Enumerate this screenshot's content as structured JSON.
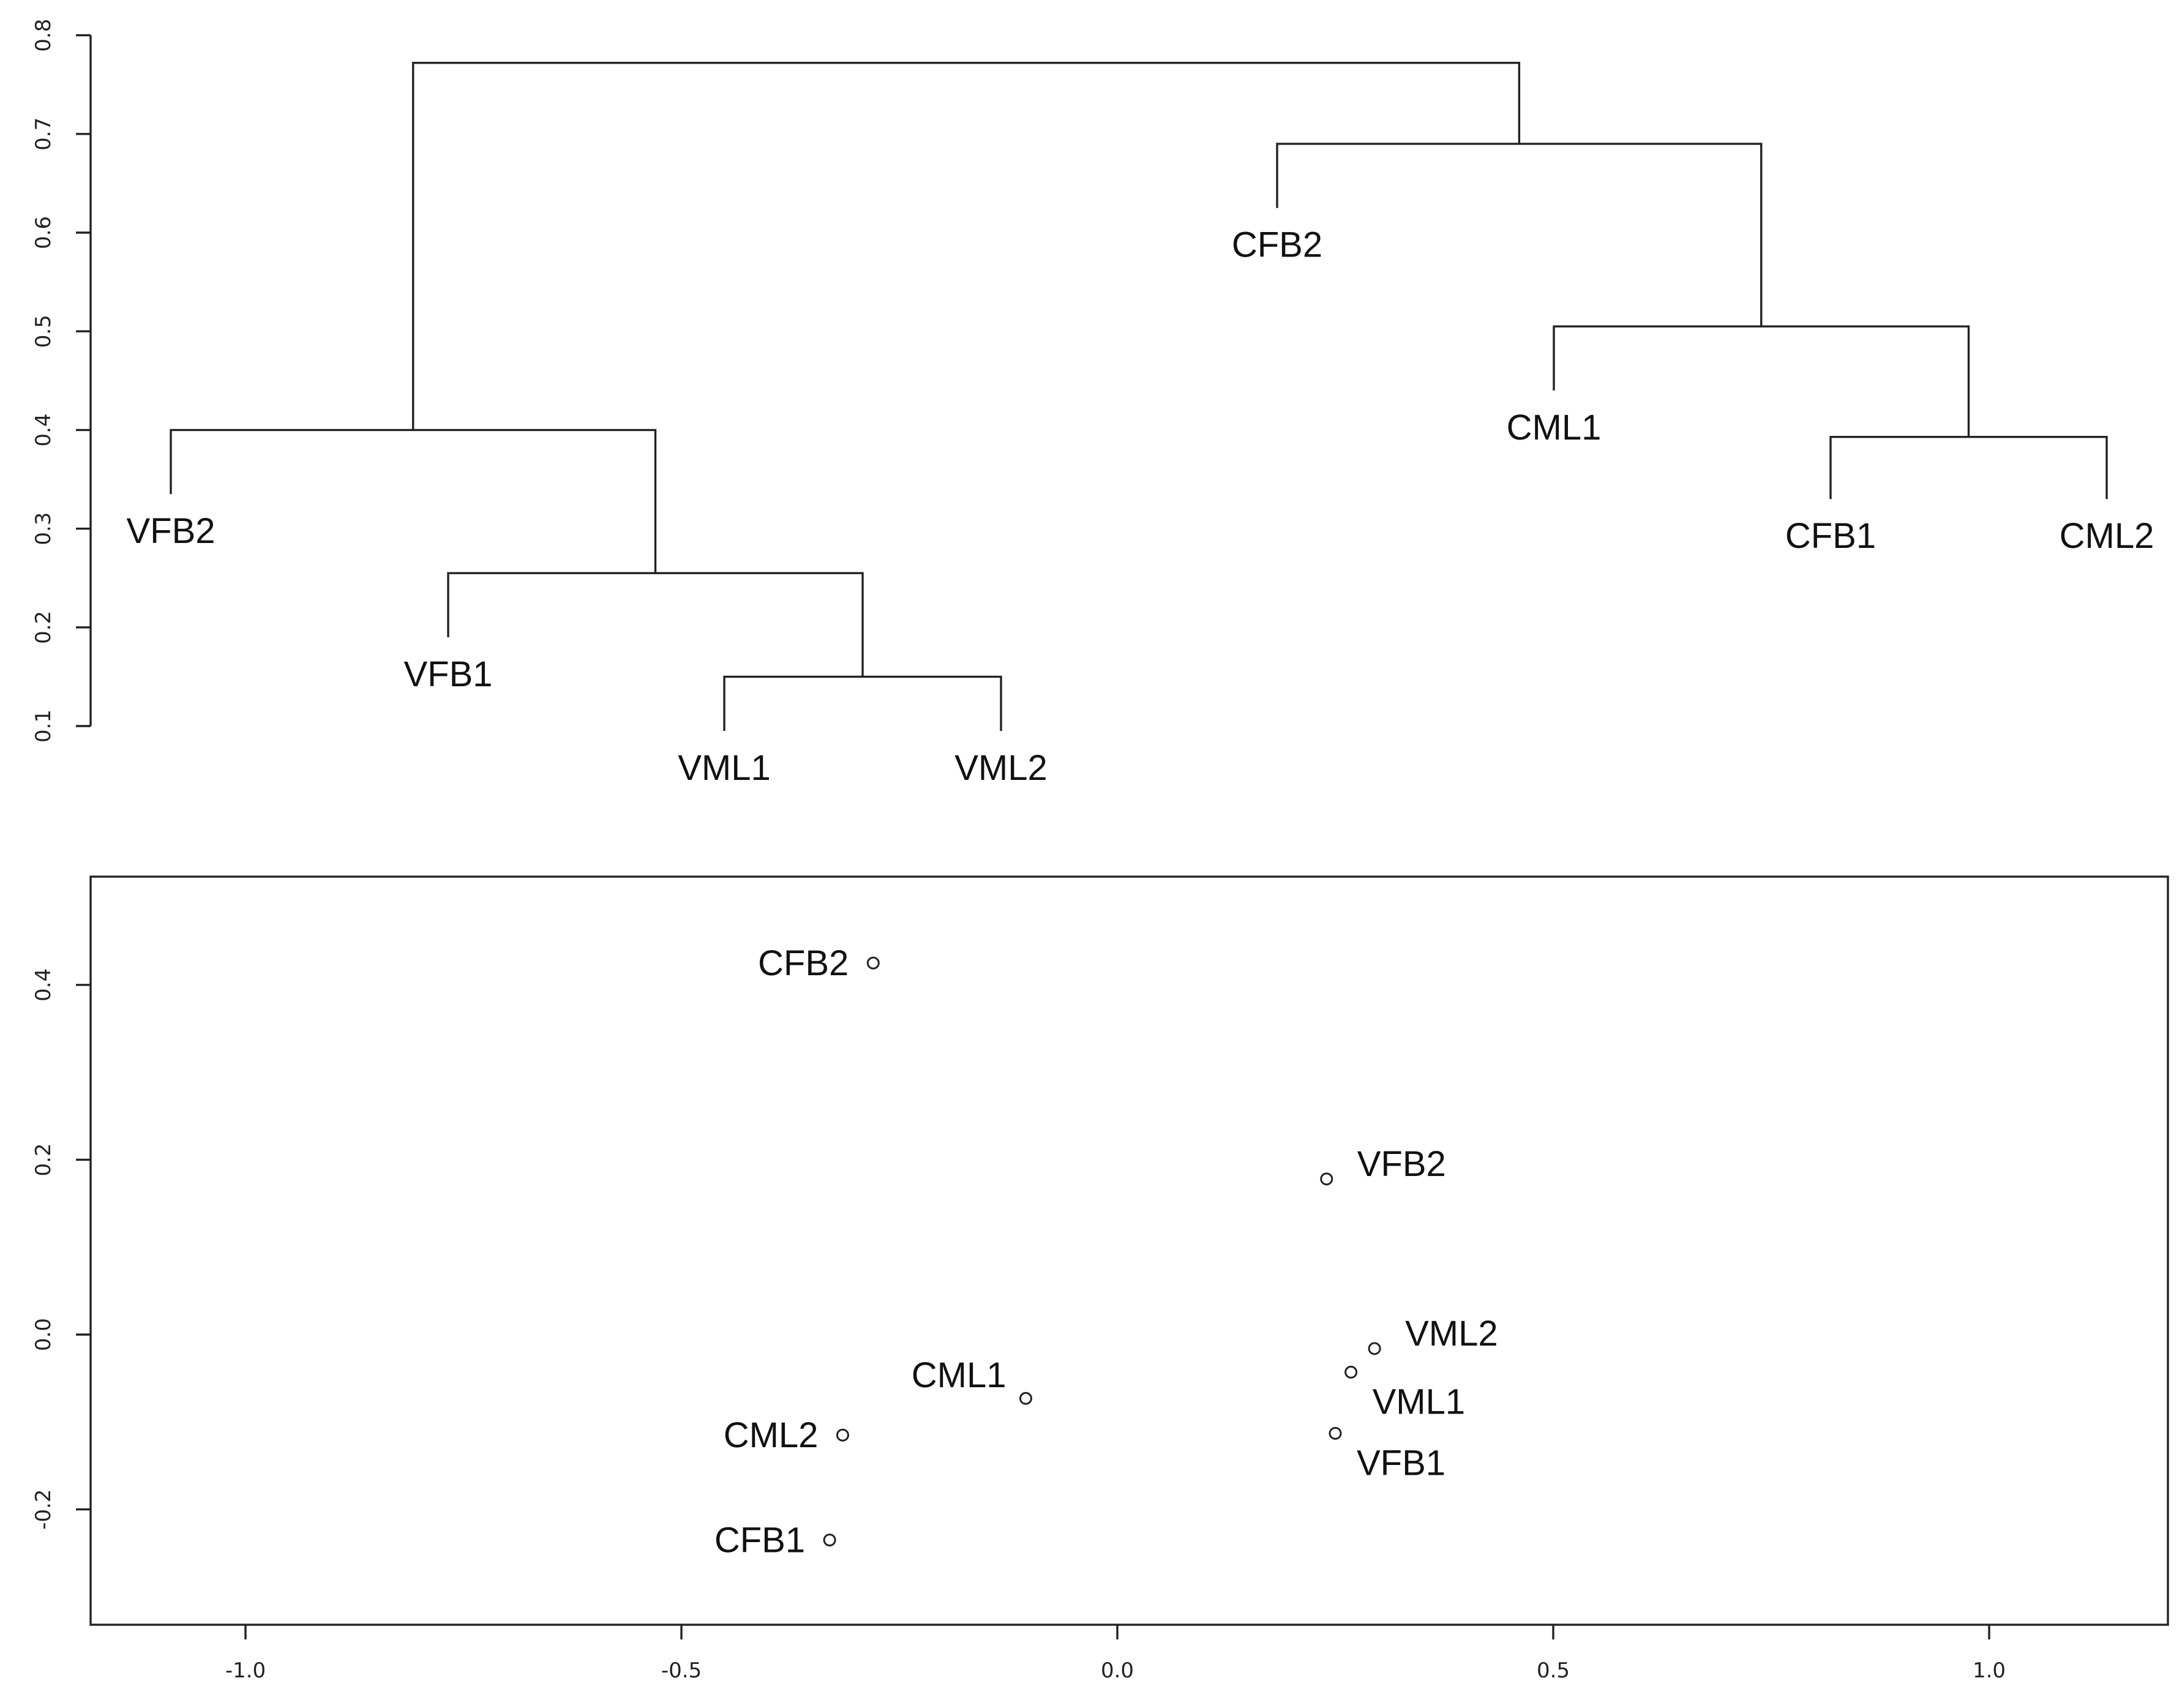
{
  "chart_data": [
    {
      "type": "dendrogram",
      "ylim": [
        0.1,
        0.8
      ],
      "y_ticks": [
        "0.1",
        "0.2",
        "0.3",
        "0.4",
        "0.5",
        "0.6",
        "0.7",
        "0.8"
      ],
      "leaves": [
        {
          "label": "VFB2",
          "height": 0.335
        },
        {
          "label": "VFB1",
          "height": 0.19
        },
        {
          "label": "VML1",
          "height": 0.095
        },
        {
          "label": "VML2",
          "height": 0.095
        },
        {
          "label": "CFB2",
          "height": 0.625
        },
        {
          "label": "CML1",
          "height": 0.44
        },
        {
          "label": "CFB1",
          "height": 0.33
        },
        {
          "label": "CML2",
          "height": 0.33
        }
      ],
      "merges": [
        {
          "left": "VML1",
          "right": "VML2",
          "height": 0.15
        },
        {
          "left": "VFB1",
          "right": "VML1+VML2",
          "height": 0.255
        },
        {
          "left": "VFB2",
          "right": "VFB1+VML1+VML2",
          "height": 0.4
        },
        {
          "left": "CFB1",
          "right": "CML2",
          "height": 0.393
        },
        {
          "left": "CML1",
          "right": "CFB1+CML2",
          "height": 0.505
        },
        {
          "left": "CFB2",
          "right": "CML1+CFB1+CML2",
          "height": 0.69
        },
        {
          "left": "VFB2+VFB1+VML1+VML2",
          "right": "CFB2+CML1+CFB1+CML2",
          "height": 0.772
        }
      ]
    },
    {
      "type": "scatter",
      "xlim": [
        -1.0,
        1.0
      ],
      "ylim": [
        -0.2,
        0.4
      ],
      "x_ticks": [
        "-1.0",
        "-0.5",
        "0.0",
        "0.5",
        "1.0"
      ],
      "y_ticks": [
        "-0.2",
        "0.0",
        "0.2",
        "0.4"
      ],
      "points": [
        {
          "label": "CFB2",
          "x": -0.28,
          "y": 0.425,
          "label_side": "left"
        },
        {
          "label": "VFB2",
          "x": 0.24,
          "y": 0.178,
          "label_side": "right"
        },
        {
          "label": "VML2",
          "x": 0.295,
          "y": -0.016,
          "label_side": "right"
        },
        {
          "label": "VML1",
          "x": 0.268,
          "y": -0.043,
          "label_side": "right-below"
        },
        {
          "label": "CML1",
          "x": -0.105,
          "y": -0.073,
          "label_side": "left-above"
        },
        {
          "label": "CML2",
          "x": -0.315,
          "y": -0.115,
          "label_side": "left"
        },
        {
          "label": "VFB1",
          "x": 0.25,
          "y": -0.113,
          "label_side": "right-below"
        },
        {
          "label": "CFB1",
          "x": -0.33,
          "y": -0.235,
          "label_side": "left"
        }
      ]
    }
  ]
}
